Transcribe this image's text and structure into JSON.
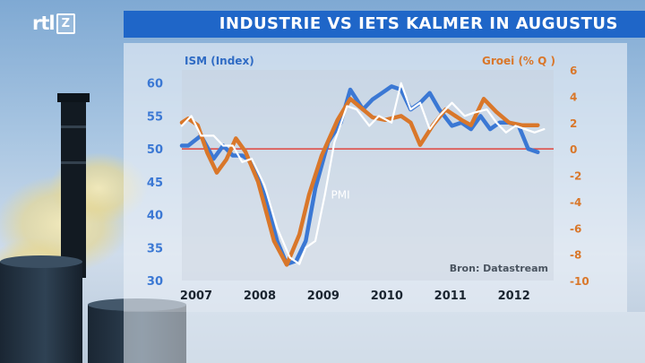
{
  "logo": {
    "brand": "rtl",
    "box_text": "Z"
  },
  "title": "INDUSTRIE VS IETS KALMER IN AUGUSTUS",
  "colors": {
    "ism_series": "#3b78d4",
    "growth_series": "#d9772a",
    "pmi_series": "#ffffff",
    "zero_line": "#e0443c",
    "title_bar": "#1f66c8"
  },
  "chart_data": {
    "type": "line",
    "left_axis": {
      "label": "ISM (Index)",
      "ticks": [
        60,
        55,
        50,
        45,
        40,
        35,
        30
      ],
      "ylim": [
        30,
        62
      ]
    },
    "right_axis": {
      "label": "Groei (% Q )",
      "ticks": [
        6,
        4,
        2,
        0,
        -2,
        -4,
        -6,
        -8,
        -10
      ],
      "ylim": [
        -10,
        6
      ]
    },
    "x_axis": {
      "ticks": [
        "2007",
        "2008",
        "2009",
        "2010",
        "2011",
        "2012"
      ],
      "xlim": [
        2007.0,
        2012.85
      ]
    },
    "reference_line": {
      "axis": "right",
      "value": 0
    },
    "annotations": [
      {
        "text": "PMI",
        "series": "PMI",
        "x": 2009.15
      }
    ],
    "source": "Bron: Datastream",
    "series": [
      {
        "name": "PMI",
        "axis": "left",
        "x": [
          2007.0,
          2007.15,
          2007.3,
          2007.5,
          2007.65,
          2007.8,
          2007.95,
          2008.1,
          2008.3,
          2008.5,
          2008.7,
          2008.85,
          2008.95,
          2009.1,
          2009.25,
          2009.4,
          2009.6,
          2009.75,
          2009.95,
          2010.1,
          2010.3,
          2010.45,
          2010.6,
          2010.75,
          2010.9,
          2011.05,
          2011.25,
          2011.45,
          2011.6,
          2011.8,
          2011.95,
          2012.1,
          2012.25,
          2012.4,
          2012.55,
          2012.7
        ],
        "values": [
          53.5,
          55,
          52,
          52,
          50.5,
          50.5,
          48,
          48.5,
          44.5,
          38,
          33.5,
          32.5,
          35,
          36,
          43,
          51,
          56.5,
          56,
          53.5,
          55,
          54,
          60,
          56,
          57,
          53,
          55,
          57,
          55,
          55.5,
          56,
          54,
          52.5,
          53.5,
          53,
          52.5,
          53
        ]
      },
      {
        "name": "ISM",
        "axis": "left",
        "x": [
          2007.0,
          2007.1,
          2007.3,
          2007.5,
          2007.65,
          2007.8,
          2007.95,
          2008.1,
          2008.3,
          2008.5,
          2008.65,
          2008.8,
          2008.95,
          2009.1,
          2009.3,
          2009.5,
          2009.65,
          2009.85,
          2010.0,
          2010.15,
          2010.3,
          2010.45,
          2010.6,
          2010.75,
          2010.9,
          2011.05,
          2011.25,
          2011.4,
          2011.55,
          2011.7,
          2011.85,
          2012.0,
          2012.15,
          2012.3,
          2012.45,
          2012.6
        ],
        "values": [
          50.5,
          50.5,
          52,
          48.5,
          50.5,
          49,
          49,
          48,
          43,
          36,
          32.5,
          33,
          36,
          44,
          51,
          54,
          59,
          56,
          57.5,
          58.5,
          59.5,
          59,
          56,
          57,
          58.5,
          56,
          53.5,
          54,
          53,
          55,
          53,
          54,
          54,
          53.5,
          50,
          49.5
        ]
      },
      {
        "name": "Groei",
        "axis": "right",
        "x": [
          2007.0,
          2007.1,
          2007.25,
          2007.4,
          2007.55,
          2007.7,
          2007.85,
          2008.0,
          2008.2,
          2008.45,
          2008.65,
          2008.85,
          2009.0,
          2009.2,
          2009.45,
          2009.65,
          2009.85,
          2010.0,
          2010.2,
          2010.45,
          2010.6,
          2010.75,
          2010.95,
          2011.15,
          2011.4,
          2011.55,
          2011.75,
          2011.95,
          2012.15,
          2012.35,
          2012.5,
          2012.6
        ],
        "values": [
          2.0,
          2.3,
          1.8,
          -0.3,
          -1.8,
          -0.8,
          0.8,
          -0.2,
          -2.5,
          -7.0,
          -8.8,
          -6.5,
          -3.5,
          -0.5,
          2.2,
          3.8,
          3.0,
          2.4,
          2.2,
          2.5,
          2.0,
          0.3,
          1.8,
          3.0,
          2.2,
          1.8,
          3.8,
          2.8,
          2.0,
          1.8,
          1.8,
          1.8
        ]
      }
    ]
  }
}
